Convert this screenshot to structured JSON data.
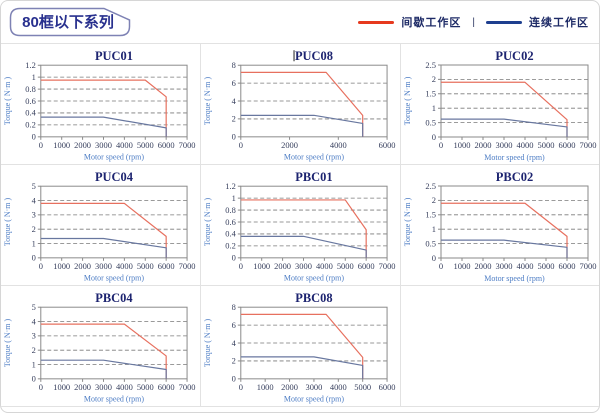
{
  "page": {
    "title": "80框以下系列"
  },
  "legend": {
    "separator": "|",
    "items": [
      {
        "key": "intermittent",
        "label": "间歇工作区",
        "color": "#e6391e"
      },
      {
        "key": "continuous",
        "label": "连续工作区",
        "color": "#1e3f8f"
      }
    ]
  },
  "colors": {
    "accent_red": "#e6391e",
    "accent_navy": "#1e3f8f",
    "chart_red": "#e7705f",
    "chart_blue": "#68779f",
    "grid_line": "#7a7a7a",
    "plot_frame": "#8a8a8a",
    "title_navy": "#1d2470",
    "tick_text": "#38405e",
    "axis_label_blue": "#4c7cc4",
    "tag_border": "#7e82b4",
    "cell_border": "#e2e2e2"
  },
  "chart_data": [
    {
      "type": "line",
      "title": "PUC01",
      "xlabel": "Motor speed (rpm)",
      "ylabel": "Torque ( N·m )",
      "xlim": [
        0,
        7000
      ],
      "xticks": [
        0,
        1000,
        2000,
        3000,
        4000,
        5000,
        6000,
        7000
      ],
      "ylim": [
        0,
        1.2
      ],
      "yticks": [
        0,
        0.2,
        0.4,
        0.6,
        0.8,
        1,
        1.2
      ],
      "series": [
        {
          "key": "intermittent",
          "name": "间歇工作区",
          "color": "#e7705f",
          "points": [
            [
              0,
              0.95
            ],
            [
              5000,
              0.95
            ],
            [
              6000,
              0.67
            ],
            [
              6000,
              0
            ]
          ]
        },
        {
          "key": "continuous",
          "name": "连续工作区",
          "color": "#68779f",
          "points": [
            [
              0,
              0.33
            ],
            [
              3000,
              0.33
            ],
            [
              6000,
              0.15
            ],
            [
              6000,
              0
            ]
          ]
        }
      ]
    },
    {
      "type": "line",
      "title": "PUC08",
      "title_cursor": true,
      "xlabel": "Motor speed (rpm)",
      "ylabel": "Torque ( N·m )",
      "xlim": [
        0,
        6000
      ],
      "xticks": [
        0,
        2000,
        4000,
        6000
      ],
      "ylim": [
        0,
        8
      ],
      "yticks": [
        0,
        2,
        4,
        6,
        8
      ],
      "series": [
        {
          "key": "intermittent",
          "name": "间歇工作区",
          "color": "#e7705f",
          "points": [
            [
              0,
              7.2
            ],
            [
              3500,
              7.2
            ],
            [
              5000,
              2.4
            ],
            [
              5000,
              0
            ]
          ]
        },
        {
          "key": "continuous",
          "name": "连续工作区",
          "color": "#68779f",
          "points": [
            [
              0,
              2.4
            ],
            [
              3000,
              2.4
            ],
            [
              5000,
              1.5
            ],
            [
              5000,
              0
            ]
          ]
        }
      ]
    },
    {
      "type": "line",
      "title": "PUC02",
      "xlabel": "Motor speed (rpm)",
      "ylabel": "Torque ( N·m )",
      "xlim": [
        0,
        7000
      ],
      "xticks": [
        0,
        1000,
        2000,
        3000,
        4000,
        5000,
        6000,
        7000
      ],
      "ylim": [
        0,
        2.5
      ],
      "yticks": [
        0,
        0.5,
        1,
        1.5,
        2,
        2.5
      ],
      "series": [
        {
          "key": "intermittent",
          "name": "间歇工作区",
          "color": "#e7705f",
          "points": [
            [
              0,
              1.9
            ],
            [
              4000,
              1.9
            ],
            [
              6000,
              0.6
            ],
            [
              6000,
              0
            ]
          ]
        },
        {
          "key": "continuous",
          "name": "连续工作区",
          "color": "#68779f",
          "points": [
            [
              0,
              0.62
            ],
            [
              3000,
              0.62
            ],
            [
              6000,
              0.35
            ],
            [
              6000,
              0
            ]
          ]
        }
      ]
    },
    {
      "type": "line",
      "title": "PUC04",
      "xlabel": "Motor speed (rpm)",
      "ylabel": "Torque ( N·m )",
      "xlim": [
        0,
        7000
      ],
      "xticks": [
        0,
        1000,
        2000,
        3000,
        4000,
        5000,
        6000,
        7000
      ],
      "ylim": [
        0,
        5
      ],
      "yticks": [
        0,
        1,
        2,
        3,
        4,
        5
      ],
      "series": [
        {
          "key": "intermittent",
          "name": "间歇工作区",
          "color": "#e7705f",
          "points": [
            [
              0,
              3.8
            ],
            [
              4000,
              3.8
            ],
            [
              6000,
              1.5
            ],
            [
              6000,
              0
            ]
          ]
        },
        {
          "key": "continuous",
          "name": "连续工作区",
          "color": "#68779f",
          "points": [
            [
              0,
              1.35
            ],
            [
              3000,
              1.35
            ],
            [
              6000,
              0.7
            ],
            [
              6000,
              0
            ]
          ]
        }
      ]
    },
    {
      "type": "line",
      "title": "PBC01",
      "xlabel": "Motor speed (rpm)",
      "ylabel": "Torque ( N·m )",
      "xlim": [
        0,
        7000
      ],
      "xticks": [
        0,
        1000,
        2000,
        3000,
        4000,
        5000,
        6000,
        7000
      ],
      "ylim": [
        0,
        1.2
      ],
      "yticks": [
        0,
        0.2,
        0.4,
        0.6,
        0.8,
        1,
        1.2
      ],
      "series": [
        {
          "key": "intermittent",
          "name": "间歇工作区",
          "color": "#e7705f",
          "points": [
            [
              0,
              0.97
            ],
            [
              5000,
              0.97
            ],
            [
              6000,
              0.47
            ],
            [
              6000,
              0
            ]
          ]
        },
        {
          "key": "continuous",
          "name": "连续工作区",
          "color": "#68779f",
          "points": [
            [
              0,
              0.36
            ],
            [
              3000,
              0.36
            ],
            [
              6000,
              0.13
            ],
            [
              6000,
              0
            ]
          ]
        }
      ]
    },
    {
      "type": "line",
      "title": "PBC02",
      "xlabel": "Motor speed (rpm)",
      "ylabel": "Torque ( N·m )",
      "xlim": [
        0,
        7000
      ],
      "xticks": [
        0,
        1000,
        2000,
        3000,
        4000,
        5000,
        6000,
        7000
      ],
      "ylim": [
        0,
        2.5
      ],
      "yticks": [
        0,
        0.5,
        1,
        1.5,
        2,
        2.5
      ],
      "series": [
        {
          "key": "intermittent",
          "name": "间歇工作区",
          "color": "#e7705f",
          "points": [
            [
              0,
              1.9
            ],
            [
              4000,
              1.9
            ],
            [
              6000,
              0.75
            ],
            [
              6000,
              0
            ]
          ]
        },
        {
          "key": "continuous",
          "name": "连续工作区",
          "color": "#68779f",
          "points": [
            [
              0,
              0.62
            ],
            [
              3000,
              0.62
            ],
            [
              6000,
              0.37
            ],
            [
              6000,
              0
            ]
          ]
        }
      ]
    },
    {
      "type": "line",
      "title": "PBC04",
      "xlabel": "Motor speed (rpm)",
      "ylabel": "Torque ( N·m )",
      "xlim": [
        0,
        7000
      ],
      "xticks": [
        0,
        1000,
        2000,
        3000,
        4000,
        5000,
        6000,
        7000
      ],
      "ylim": [
        0,
        5
      ],
      "yticks": [
        0,
        1,
        2,
        3,
        4,
        5
      ],
      "series": [
        {
          "key": "intermittent",
          "name": "间歇工作区",
          "color": "#e7705f",
          "points": [
            [
              0,
              3.82
            ],
            [
              4000,
              3.82
            ],
            [
              6000,
              1.6
            ],
            [
              6000,
              0
            ]
          ]
        },
        {
          "key": "continuous",
          "name": "连续工作区",
          "color": "#68779f",
          "points": [
            [
              0,
              1.3
            ],
            [
              3000,
              1.3
            ],
            [
              6000,
              0.65
            ],
            [
              6000,
              0
            ]
          ]
        }
      ]
    },
    {
      "type": "line",
      "title": "PBC08",
      "xlabel": "Motor speed (rpm)",
      "ylabel": "Torque ( N·m )",
      "xlim": [
        0,
        6000
      ],
      "xticks": [
        0,
        1000,
        2000,
        3000,
        4000,
        5000,
        6000
      ],
      "ylim": [
        0,
        8
      ],
      "yticks": [
        0,
        2,
        4,
        6,
        8
      ],
      "series": [
        {
          "key": "intermittent",
          "name": "间歇工作区",
          "color": "#e7705f",
          "points": [
            [
              0,
              7.2
            ],
            [
              3500,
              7.2
            ],
            [
              5000,
              2.4
            ],
            [
              5000,
              0
            ]
          ]
        },
        {
          "key": "continuous",
          "name": "连续工作区",
          "color": "#68779f",
          "points": [
            [
              0,
              2.45
            ],
            [
              3000,
              2.45
            ],
            [
              5000,
              1.5
            ],
            [
              5000,
              0
            ]
          ]
        }
      ]
    }
  ]
}
